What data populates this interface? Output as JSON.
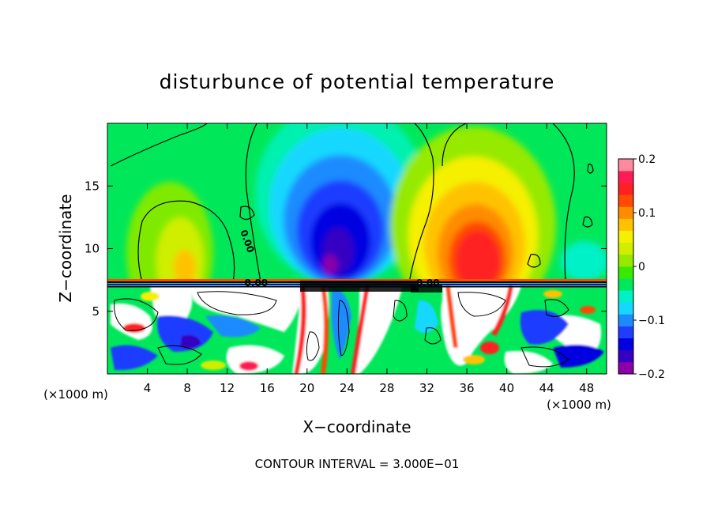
{
  "chart_data": {
    "type": "heatmap",
    "title": "disturbunce of potential temperature",
    "xlabel": "X−coordinate",
    "ylabel": "Z−coordinate",
    "x_unit_left": "(×1000 m)",
    "x_unit_right": "(×1000 m)",
    "footer": "CONTOUR INTERVAL = 3.000E−01",
    "xlim": [
      0,
      50
    ],
    "ylim": [
      0,
      20
    ],
    "x_ticks": [
      {
        "value": 4,
        "label": "4"
      },
      {
        "value": 8,
        "label": "8"
      },
      {
        "value": 12,
        "label": "12"
      },
      {
        "value": 16,
        "label": "16"
      },
      {
        "value": 20,
        "label": "20"
      },
      {
        "value": 24,
        "label": "24"
      },
      {
        "value": 28,
        "label": "28"
      },
      {
        "value": 32,
        "label": "32"
      },
      {
        "value": 36,
        "label": "36"
      },
      {
        "value": 40,
        "label": "40"
      },
      {
        "value": 44,
        "label": "44"
      },
      {
        "value": 48,
        "label": "48"
      }
    ],
    "y_ticks": [
      {
        "value": 5,
        "label": "5"
      },
      {
        "value": 10,
        "label": "10"
      },
      {
        "value": 15,
        "label": "15"
      }
    ],
    "colorbar": {
      "min": -0.2,
      "max": 0.2,
      "ticks": [
        {
          "value": 0.2,
          "label": "0.2"
        },
        {
          "value": 0.1,
          "label": "0.1"
        },
        {
          "value": 0,
          "label": "0"
        },
        {
          "value": -0.1,
          "label": "−0.1"
        },
        {
          "value": -0.2,
          "label": "−0.2"
        }
      ],
      "colors": [
        "#8b00a8",
        "#3500c2",
        "#0000e0",
        "#1f3cff",
        "#1b8bff",
        "#16d8ff",
        "#00f0c8",
        "#00e85a",
        "#39ea00",
        "#95ea00",
        "#cfee00",
        "#f5f000",
        "#ffc200",
        "#ff8c00",
        "#ff4a00",
        "#ff2020",
        "#ff1c55",
        "#ff8aa0"
      ]
    },
    "contour_labels": [
      {
        "x": 13.7,
        "y": 10.5,
        "label": "0.00"
      },
      {
        "x": 14.9,
        "y": 7.0,
        "label": "0.00"
      },
      {
        "x": 32.1,
        "y": 7.0,
        "label": "0.00"
      }
    ],
    "features": [
      {
        "name": "cool anomaly aloft",
        "x": 23,
        "y": 11.5,
        "value": -0.2
      },
      {
        "name": "warm anomaly aloft",
        "x": 37,
        "y": 10.5,
        "value": 0.17
      },
      {
        "name": "weak warm lobe",
        "x": 7,
        "y": 10,
        "value": 0.05
      }
    ]
  }
}
